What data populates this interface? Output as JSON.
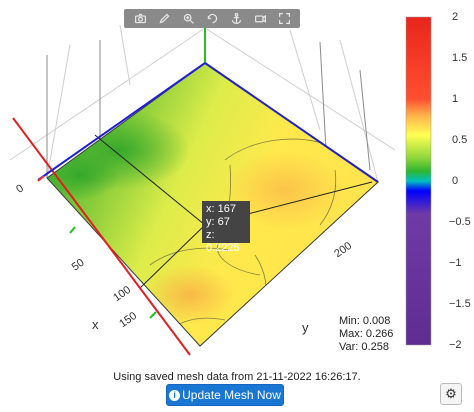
{
  "modebar": {
    "buttons": [
      "camera-icon",
      "pencil-icon",
      "zoom-icon",
      "rotate-icon",
      "anchor-icon",
      "video-camera-icon",
      "fullscreen-icon"
    ]
  },
  "chart_data": {
    "type": "surface",
    "x_ticks": [
      "0",
      "50",
      "100",
      "150"
    ],
    "y_ticks": [
      "200"
    ],
    "x_axis_title": "x",
    "y_axis_title": "y",
    "colorbar": {
      "ticks": [
        "2",
        "1.5",
        "1",
        "0.5",
        "0",
        "−0.5",
        "−1",
        "−1.5",
        "−2"
      ],
      "range": [
        -2,
        2
      ],
      "colors": [
        "#5e2d91",
        "#6a3aa0",
        "#6e3aa6",
        "#0000ff",
        "#2fb52f",
        "#ffff55",
        "#ffb24a",
        "#ff4f2f",
        "#e8251c"
      ]
    },
    "hover": {
      "x": "x: 167",
      "y": "y: 67",
      "z": "z: 0.2225"
    }
  },
  "stats": {
    "min": "Min: 0.008",
    "max": "Max: 0.266",
    "var": "Var: 0.258"
  },
  "status_text": "Using saved mesh data from 21-11-2022 16:26:17.",
  "update_button_label": "Update Mesh Now",
  "settings_icon": "gear-icon"
}
